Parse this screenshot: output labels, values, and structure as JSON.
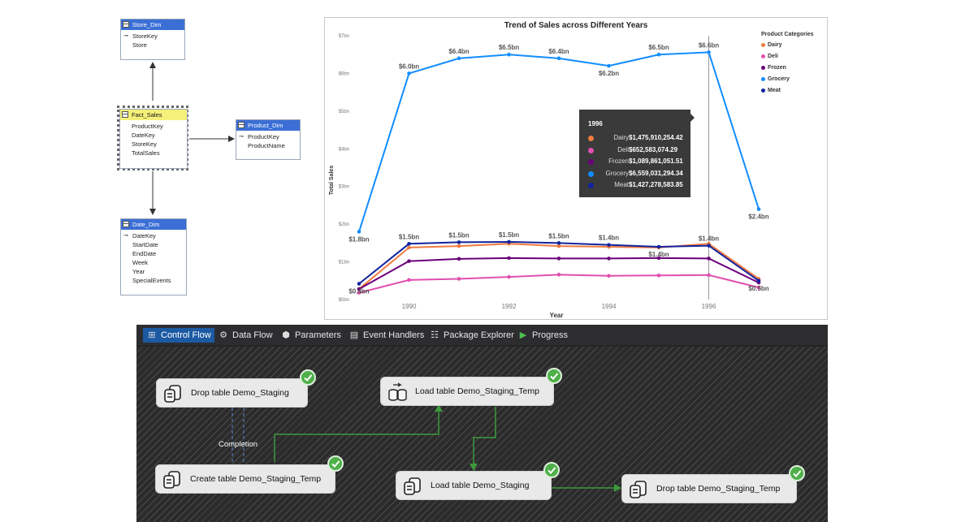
{
  "schema": {
    "tables": [
      {
        "name": "Store_Dim",
        "fields": [
          {
            "name": "StoreKey",
            "key": true
          },
          {
            "name": "Store",
            "key": false
          }
        ]
      },
      {
        "name": "Fact_Sales",
        "fields": [
          {
            "name": "ProductKey",
            "key": false
          },
          {
            "name": "DateKey",
            "key": false
          },
          {
            "name": "StoreKey",
            "key": false
          },
          {
            "name": "TotalSales",
            "key": false
          }
        ]
      },
      {
        "name": "Product_Dim",
        "fields": [
          {
            "name": "ProductKey",
            "key": true
          },
          {
            "name": "ProductName",
            "key": false
          }
        ]
      },
      {
        "name": "Date_Dim",
        "fields": [
          {
            "name": "DateKey",
            "key": true
          },
          {
            "name": "StartDate",
            "key": false
          },
          {
            "name": "EndDate",
            "key": false
          },
          {
            "name": "Week",
            "key": false
          },
          {
            "name": "Year",
            "key": false
          },
          {
            "name": "SpecialEvents",
            "key": false
          }
        ]
      }
    ]
  },
  "chart_data": {
    "type": "line",
    "title": "Trend of Sales across Different Years",
    "xlabel": "Year",
    "ylabel": "Total Sales",
    "x": [
      1989,
      1990,
      1991,
      1992,
      1993,
      1994,
      1995,
      1996,
      1997
    ],
    "xticks": [
      1990,
      1992,
      1994,
      1996
    ],
    "yticks": [
      "$0bn",
      "$1bn",
      "$2bn",
      "$3bn",
      "$4bn",
      "$5bn",
      "$6bn",
      "$7bn"
    ],
    "ylim": [
      0,
      7
    ],
    "legend_title": "Product Categories",
    "legend_position": "top-right",
    "series": [
      {
        "name": "Dairy",
        "color": "#f07b3f",
        "values": [
          0.28,
          1.38,
          1.42,
          1.48,
          1.42,
          1.4,
          1.38,
          1.48,
          0.55
        ]
      },
      {
        "name": "Deli",
        "color": "#e14fb0",
        "values": [
          0.18,
          0.52,
          0.55,
          0.6,
          0.66,
          0.63,
          0.64,
          0.65,
          0.32
        ]
      },
      {
        "name": "Frozen",
        "color": "#6b007b",
        "values": [
          0.28,
          1.02,
          1.08,
          1.1,
          1.09,
          1.09,
          1.1,
          1.09,
          0.45
        ]
      },
      {
        "name": "Grocery",
        "color": "#118dff",
        "values": [
          1.8,
          6.0,
          6.4,
          6.5,
          6.4,
          6.2,
          6.5,
          6.56,
          2.4
        ]
      },
      {
        "name": "Meat",
        "color": "#12239e",
        "values": [
          0.42,
          1.48,
          1.52,
          1.53,
          1.5,
          1.45,
          1.4,
          1.43,
          0.5
        ]
      }
    ],
    "data_labels": [
      {
        "series": "Grocery",
        "x": 1989,
        "text": "$1.8bn",
        "pos": "below"
      },
      {
        "series": "Grocery",
        "x": 1990,
        "text": "$6.0bn",
        "pos": "above"
      },
      {
        "series": "Grocery",
        "x": 1991,
        "text": "$6.4bn",
        "pos": "above"
      },
      {
        "series": "Grocery",
        "x": 1992,
        "text": "$6.5bn",
        "pos": "above"
      },
      {
        "series": "Grocery",
        "x": 1993,
        "text": "$6.4bn",
        "pos": "above"
      },
      {
        "series": "Grocery",
        "x": 1994,
        "text": "$6.2bn",
        "pos": "below"
      },
      {
        "series": "Grocery",
        "x": 1995,
        "text": "$6.5bn",
        "pos": "above"
      },
      {
        "series": "Grocery",
        "x": 1996,
        "text": "$6.6bn",
        "pos": "above"
      },
      {
        "series": "Grocery",
        "x": 1997,
        "text": "$2.4bn",
        "pos": "below"
      },
      {
        "series": "Meat",
        "x": 1989,
        "text": "$0.4bn",
        "pos": "below"
      },
      {
        "series": "Meat",
        "x": 1990,
        "text": "$1.5bn",
        "pos": "above"
      },
      {
        "series": "Meat",
        "x": 1991,
        "text": "$1.5bn",
        "pos": "above"
      },
      {
        "series": "Meat",
        "x": 1992,
        "text": "$1.5bn",
        "pos": "above"
      },
      {
        "series": "Meat",
        "x": 1993,
        "text": "$1.5bn",
        "pos": "above"
      },
      {
        "series": "Meat",
        "x": 1994,
        "text": "$1.4bn",
        "pos": "above"
      },
      {
        "series": "Meat",
        "x": 1995,
        "text": "$1.4bn",
        "pos": "below"
      },
      {
        "series": "Meat",
        "x": 1996,
        "text": "$1.4bn",
        "pos": "above"
      },
      {
        "series": "Meat",
        "x": 1997,
        "text": "$0.5bn",
        "pos": "below"
      }
    ],
    "hover_x": 1996,
    "tooltip": {
      "title": "1996",
      "rows": [
        {
          "name": "Dairy",
          "color": "#f07b3f",
          "value": "$1,475,910,254.42"
        },
        {
          "name": "Deli",
          "color": "#e14fb0",
          "value": "$652,583,074.29"
        },
        {
          "name": "Frozen",
          "color": "#6b007b",
          "value": "$1,089,861,051.51"
        },
        {
          "name": "Grocery",
          "color": "#118dff",
          "value": "$6,559,031,294.34"
        },
        {
          "name": "Meat",
          "color": "#12239e",
          "value": "$1,427,278,583.85"
        }
      ]
    }
  },
  "designer": {
    "tabs": [
      {
        "label": "Control Flow",
        "icon": "control-flow-icon",
        "active": true
      },
      {
        "label": "Data Flow",
        "icon": "data-flow-icon",
        "active": false
      },
      {
        "label": "Parameters",
        "icon": "parameters-icon",
        "active": false
      },
      {
        "label": "Event Handlers",
        "icon": "event-handlers-icon",
        "active": false
      },
      {
        "label": "Package Explorer",
        "icon": "package-explorer-icon",
        "active": false
      },
      {
        "label": "Progress",
        "icon": "progress-icon",
        "active": false
      }
    ],
    "tasks": [
      {
        "label": "Drop table Demo_Staging",
        "kind": "sql",
        "status": "success"
      },
      {
        "label": "Load table Demo_Staging_Temp",
        "kind": "dataflow",
        "status": "success"
      },
      {
        "label": "Create table Demo_Staging_Temp",
        "kind": "sql",
        "status": "success"
      },
      {
        "label": "Load table Demo_Staging",
        "kind": "sql",
        "status": "success"
      },
      {
        "label": "Drop table Demo_Staging_Temp",
        "kind": "sql",
        "status": "success"
      }
    ],
    "completion_label": "Completion",
    "colors": {
      "success_arrow": "#3c9a3c",
      "completion_arrow": "#4a6b9c"
    }
  }
}
